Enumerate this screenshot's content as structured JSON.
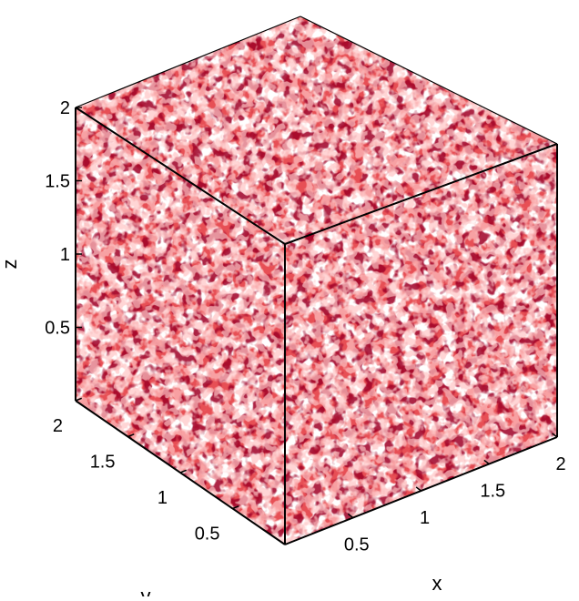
{
  "chart_data": {
    "type": "isosurface-3d",
    "colors": {
      "surface": "#cc1418",
      "surface_dark": "#7a0508",
      "surface_light": "#ff6a6a",
      "background": "#ffffff"
    },
    "xlabel": "x",
    "ylabel": "y",
    "zlabel": "z",
    "xlim": [
      0,
      2
    ],
    "ylim": [
      0,
      2
    ],
    "zlim": [
      0,
      2
    ],
    "x_ticks": [
      "0.5",
      "1",
      "1.5",
      "2"
    ],
    "y_ticks": [
      "0.5",
      "1",
      "1.5",
      "2"
    ],
    "z_ticks": [
      "0.5",
      "1",
      "1.5",
      "2"
    ],
    "grid": false,
    "box": true
  }
}
